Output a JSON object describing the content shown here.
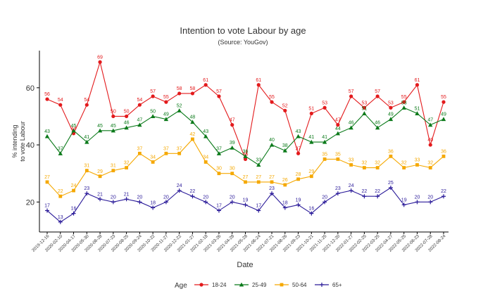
{
  "chart_data": {
    "type": "line",
    "title": "Intention to vote Labour by age",
    "subtitle": "(Source: YouGov)",
    "xlabel": "Date",
    "ylabel": "% intending to vote Labour",
    "ylabel_lines": [
      "% intending",
      "to vote Labour"
    ],
    "ylim": [
      9.5,
      73
    ],
    "yticks": [
      20,
      40,
      60
    ],
    "grid": false,
    "legend_title": "Age",
    "legend_position": "bottom",
    "x": [
      "2019-12-16",
      "2020-02-10",
      "2020-04-17",
      "2020-05-30",
      "2020-06-28",
      "2020-07-23",
      "2020-08-25",
      "2020-09-24",
      "2020-10-22",
      "2020-11-27",
      "2020-12-22",
      "2021-01-27",
      "2021-02-18",
      "2021-03-26",
      "2021-04-28",
      "2021-05-28",
      "2021-06-24",
      "2021-07-21",
      "2021-08-26",
      "2021-09-23",
      "2021-10-21",
      "2021-11-25",
      "2021-12-20",
      "2022-01-27",
      "2022-02-25",
      "2022-03-25",
      "2022-04-27",
      "2022-05-25",
      "2022-06-23",
      "2022-07-28",
      "2022-08-24"
    ],
    "series": [
      {
        "name": "18-24",
        "color": "#e31a1c",
        "marker": "circle",
        "values": [
          56,
          54,
          44,
          54,
          69,
          50,
          50,
          54,
          57,
          55,
          58,
          58,
          61,
          57,
          47,
          35,
          61,
          55,
          52,
          37,
          51,
          53,
          47,
          57,
          53,
          57,
          53,
          55,
          61,
          40,
          55
        ]
      },
      {
        "name": "25-49",
        "color": "#0b7a1a",
        "marker": "triangle",
        "values": [
          43,
          37,
          45,
          41,
          45,
          45,
          46,
          47,
          50,
          49,
          52,
          48,
          43,
          37,
          39,
          36,
          33,
          40,
          38,
          43,
          41,
          41,
          44,
          46,
          51,
          46,
          49,
          53,
          51,
          47,
          49
        ]
      },
      {
        "name": "50-64",
        "color": "#f5a800",
        "marker": "square",
        "values": [
          27,
          22,
          24,
          31,
          29,
          31,
          32,
          37,
          34,
          37,
          37,
          42,
          34,
          30,
          30,
          27,
          27,
          27,
          26,
          28,
          29,
          35,
          35,
          33,
          32,
          32,
          36,
          32,
          33,
          32,
          36
        ]
      },
      {
        "name": "65+",
        "color": "#2a1a99",
        "marker": "plus",
        "values": [
          17,
          13,
          16,
          23,
          21,
          20,
          21,
          20,
          18,
          20,
          24,
          22,
          20,
          17,
          20,
          19,
          17,
          23,
          18,
          19,
          16,
          20,
          23,
          24,
          22,
          22,
          25,
          19,
          20,
          20,
          22
        ]
      }
    ]
  }
}
